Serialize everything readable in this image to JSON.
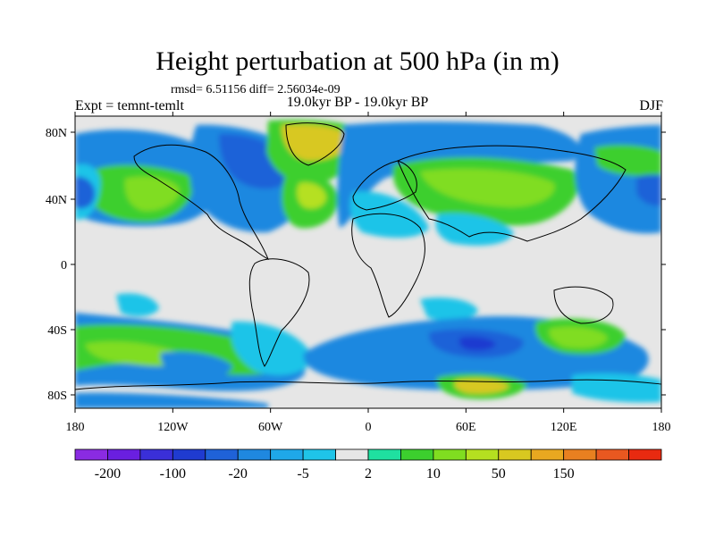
{
  "title": "Height perturbation at 500 hPa (in m)",
  "stats": "rmsd= 6.51156 diff= 2.56034e-09",
  "experiment": "Expt = temnt-temlt",
  "period": "19.0kyr BP - 19.0kyr BP",
  "season": "DJF",
  "lat_ticks": [
    "80N",
    "40N",
    "0",
    "40S",
    "80S"
  ],
  "lon_ticks": [
    "180",
    "120W",
    "60W",
    "0",
    "60E",
    "120E",
    "180"
  ],
  "colorbar": {
    "colors": [
      "#8a2be2",
      "#6a1fe0",
      "#3a2fd8",
      "#1f3bd0",
      "#1f62d8",
      "#1f88e0",
      "#1fa8e8",
      "#1fc4e8",
      "#e6e6e6",
      "#1fe0a0",
      "#3ccf2e",
      "#80dd20",
      "#b5e020",
      "#d8c820",
      "#e8a820",
      "#e88020",
      "#e85820",
      "#e82a10"
    ],
    "labels": [
      "-200",
      "-100",
      "-20",
      "-5",
      "2",
      "10",
      "50",
      "150"
    ]
  },
  "palette": {
    "neutral": "#e6e6e6",
    "negative_light": "#1fc4e8",
    "negative_mid": "#1f88e0",
    "negative_strong": "#1f62d8",
    "negative_deep": "#1f3bd0",
    "positive_light": "#3ccf2e",
    "positive_mid": "#80dd20",
    "positive_strong": "#b5e020",
    "positive_deep": "#d8c820"
  }
}
